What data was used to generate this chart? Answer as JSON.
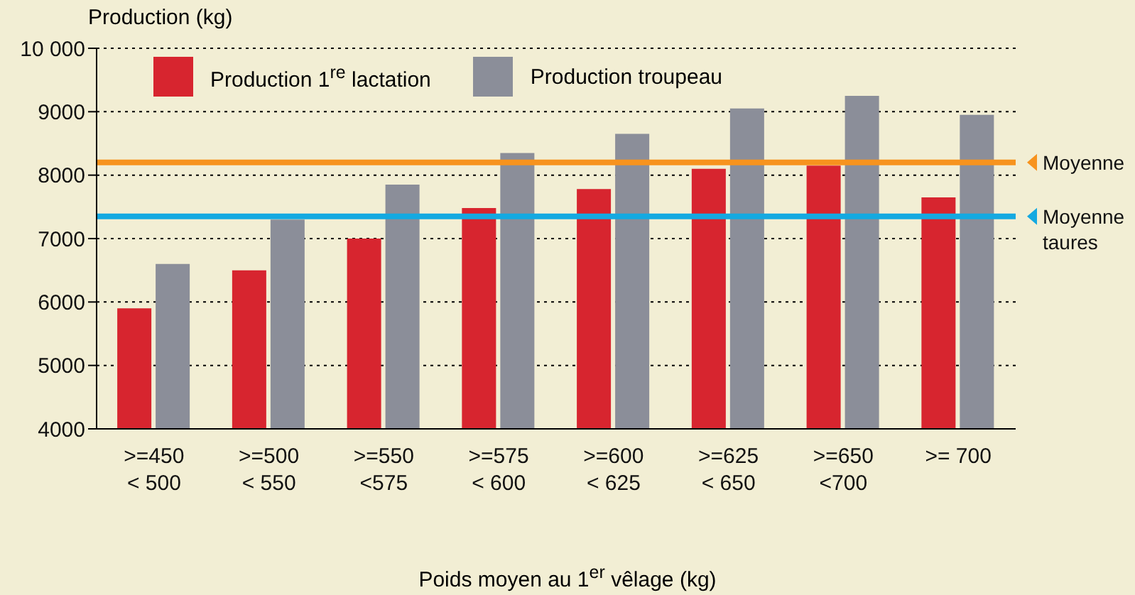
{
  "chart_data": {
    "type": "bar",
    "xlabel": "Poids moyen au 1$^{er}$ vêlage (kg)",
    "ylabel": "Production (kg)",
    "categories": [
      ">=450\n< 500",
      ">=500\n< 550",
      ">=550\n<575",
      ">=575\n< 600",
      ">=600\n< 625",
      ">=625\n< 650",
      ">=650\n<700",
      ">= 700"
    ],
    "series": [
      {
        "name": "Production 1$^{re}$ lactation",
        "color": "#d7252f",
        "values": [
          5900,
          6500,
          7000,
          7480,
          7780,
          8100,
          8150,
          7650
        ]
      },
      {
        "name": "Production troupeau",
        "color": "#8b8e99",
        "values": [
          6600,
          7300,
          7850,
          8350,
          8650,
          9050,
          9250,
          8950
        ]
      }
    ],
    "ylim": [
      4000,
      10000
    ],
    "yticks": [
      4000,
      5000,
      6000,
      7000,
      8000,
      9000,
      {
        "value": 10000,
        "label": "10 000"
      }
    ],
    "grid": "y",
    "legend": "top left",
    "ref_lines": [
      {
        "axis": "y",
        "value": 8200,
        "label": "Moyenne",
        "color": "#f7931e"
      },
      {
        "axis": "y",
        "value": 7350,
        "label": "Moyenne\ntaures",
        "color": "#14a9e1"
      }
    ]
  }
}
